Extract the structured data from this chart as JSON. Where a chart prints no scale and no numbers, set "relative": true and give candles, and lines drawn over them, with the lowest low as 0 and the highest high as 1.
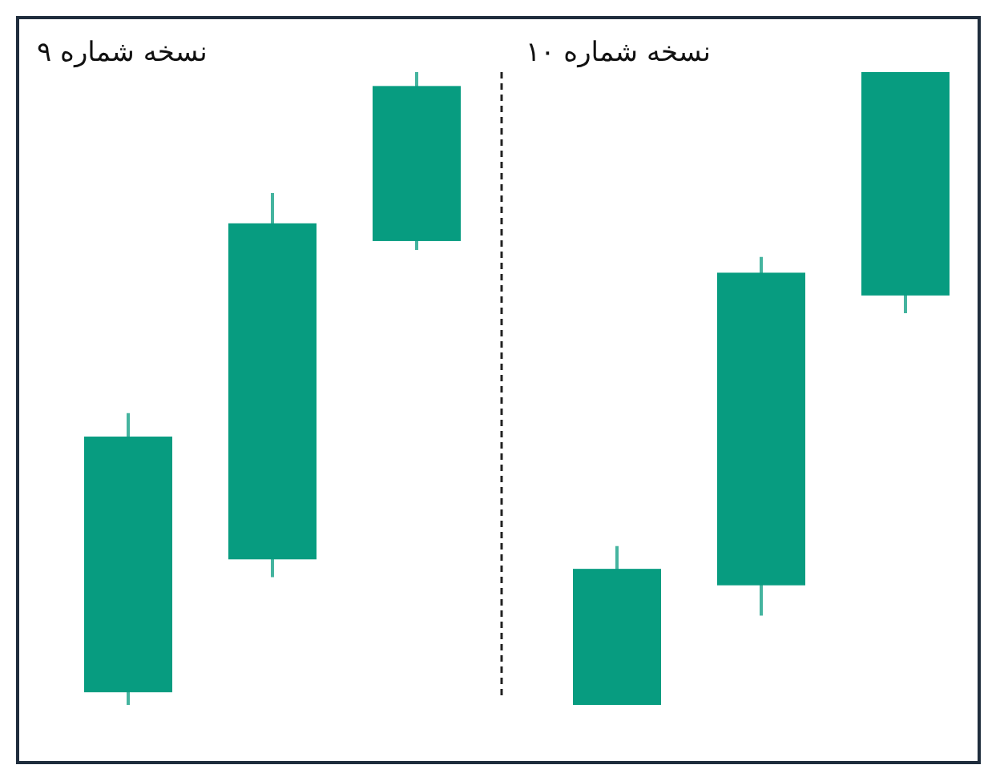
{
  "chart_data": [
    {
      "type": "candlestick",
      "title": "نسخه شماره ۹",
      "categories": [
        null,
        null,
        null
      ],
      "relative": true,
      "colors": [
        "#079c80",
        "#079c80",
        "#079c80"
      ],
      "ohlc": [
        [
          0.02,
          0.461,
          0,
          0.424
        ],
        [
          0.23,
          0.809,
          0.202,
          0.761
        ],
        [
          0.733,
          1,
          0.719,
          0.978
        ]
      ]
    },
    {
      "type": "candlestick",
      "title": "نسخه شماره ۱۰",
      "categories": [
        null,
        null,
        null
      ],
      "relative": true,
      "colors": [
        "#079c80",
        "#079c80",
        "#079c80"
      ],
      "ohlc": [
        [
          0,
          0.251,
          0,
          0.215
        ],
        [
          0.189,
          0.708,
          0.141,
          0.683
        ],
        [
          0.647,
          1,
          0.619,
          1
        ]
      ]
    }
  ]
}
